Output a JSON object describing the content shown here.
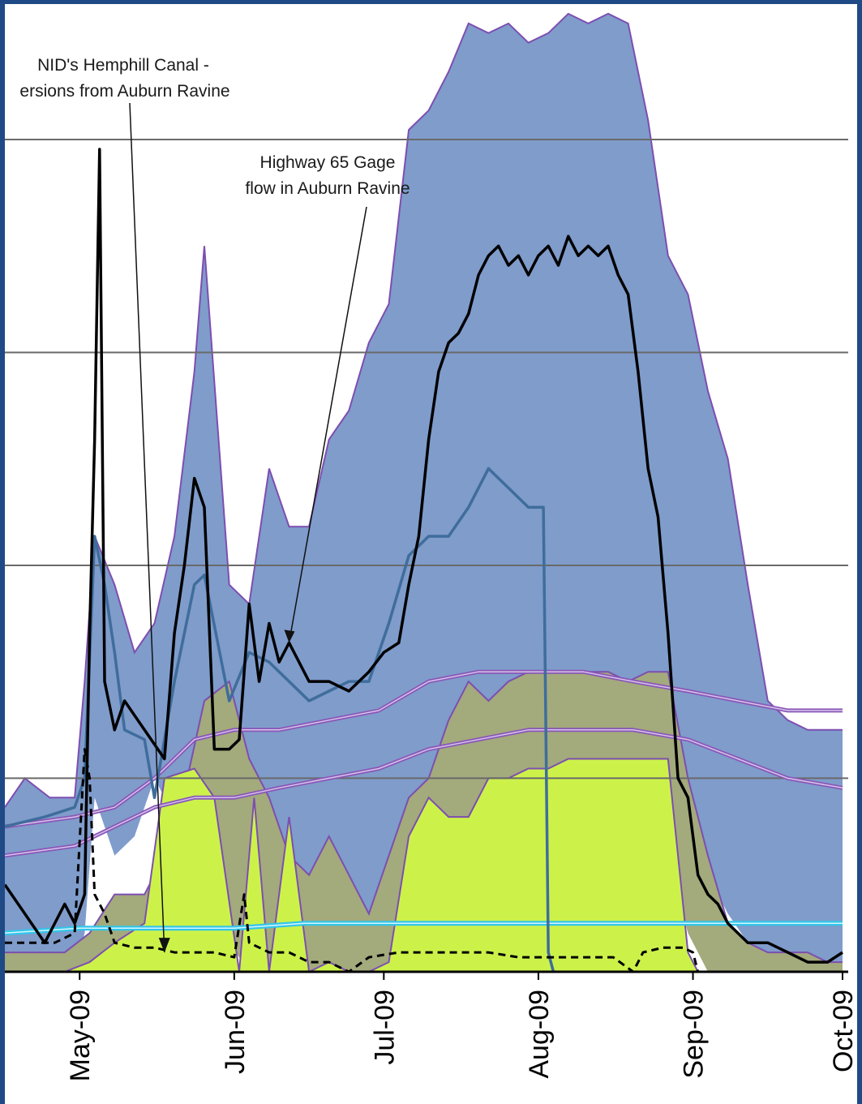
{
  "colors": {
    "border": "#1f4a86",
    "band_outer": "#7f9ccb",
    "band_outer_edge": "#7d4eb0",
    "band_mid": "#a3aa7c",
    "band_inner": "#ccf24a",
    "line_main": "#000000",
    "line_gage": "#3f6d9c",
    "line_purple": "#8a57b8",
    "line_cyan": "#33c6e8",
    "gridline": "#6a6a6a"
  },
  "chart_data": {
    "type": "area",
    "title": "",
    "xlabel": "",
    "ylabel": "",
    "x_range": [
      "2009-04-16",
      "2009-10-01"
    ],
    "y_range": [
      0,
      100
    ],
    "grid": "horizontal",
    "x_ticks": [
      "May-09",
      "Jun-09",
      "Jul-09",
      "Aug-09",
      "Sep-09",
      "Oct-09"
    ],
    "x_tick_dates": [
      "2009-05-01",
      "2009-06-01",
      "2009-07-01",
      "2009-08-01",
      "2009-09-01",
      "2009-10-01"
    ],
    "y_gridlines": [
      20,
      42,
      64,
      86
    ],
    "annotations": [
      {
        "lines": [
          "NID's Hemphill Canal -",
          "ersions from Auburn Ravine"
        ],
        "arrow_to": [
          "2009-05-18",
          2
        ]
      },
      {
        "lines": [
          "Highway 65 Gage",
          "flow in Auburn Ravine"
        ],
        "arrow_to": [
          "2009-06-12",
          34
        ]
      }
    ],
    "bands": [
      {
        "name": "outer-range",
        "x": [
          "2009-04-16",
          "2009-04-20",
          "2009-04-25",
          "2009-04-30",
          "2009-05-02",
          "2009-05-04",
          "2009-05-08",
          "2009-05-12",
          "2009-05-16",
          "2009-05-20",
          "2009-05-24",
          "2009-05-26",
          "2009-05-31",
          "2009-06-04",
          "2009-06-08",
          "2009-06-12",
          "2009-06-16",
          "2009-06-20",
          "2009-06-24",
          "2009-06-28",
          "2009-07-02",
          "2009-07-06",
          "2009-07-10",
          "2009-07-14",
          "2009-07-18",
          "2009-07-22",
          "2009-07-26",
          "2009-07-30",
          "2009-08-03",
          "2009-08-07",
          "2009-08-11",
          "2009-08-15",
          "2009-08-19",
          "2009-08-23",
          "2009-08-27",
          "2009-08-31",
          "2009-09-04",
          "2009-09-08",
          "2009-09-12",
          "2009-09-16",
          "2009-09-20",
          "2009-09-24",
          "2009-09-28",
          "2009-10-01"
        ],
        "upper": [
          17,
          20,
          18,
          18,
          30,
          45,
          40,
          33,
          36,
          45,
          62,
          75,
          40,
          38,
          52,
          46,
          46,
          55,
          58,
          65,
          69,
          87,
          89,
          93,
          98,
          97,
          98,
          96,
          97,
          99,
          98,
          99,
          98,
          88,
          74,
          70,
          60,
          53,
          40,
          28,
          26,
          25,
          25,
          25
        ],
        "lower": [
          0,
          0,
          0,
          0,
          4,
          18,
          12,
          14,
          20,
          16,
          14,
          12,
          2,
          2,
          3,
          4,
          3,
          2,
          3,
          4,
          6,
          6,
          8,
          12,
          16,
          18,
          20,
          22,
          24,
          24,
          24,
          24,
          24,
          22,
          18,
          14,
          10,
          6,
          3,
          2,
          2,
          2,
          1,
          1
        ]
      },
      {
        "name": "mid-range",
        "x": [
          "2009-04-16",
          "2009-04-28",
          "2009-05-03",
          "2009-05-08",
          "2009-05-14",
          "2009-05-20",
          "2009-05-26",
          "2009-05-31",
          "2009-06-04",
          "2009-06-08",
          "2009-06-12",
          "2009-06-16",
          "2009-06-20",
          "2009-06-24",
          "2009-06-28",
          "2009-07-02",
          "2009-07-06",
          "2009-07-10",
          "2009-07-14",
          "2009-07-18",
          "2009-07-22",
          "2009-07-26",
          "2009-07-30",
          "2009-08-03",
          "2009-08-07",
          "2009-08-11",
          "2009-08-15",
          "2009-08-19",
          "2009-08-23",
          "2009-08-27",
          "2009-08-31",
          "2009-09-04",
          "2009-09-08",
          "2009-09-12",
          "2009-09-16",
          "2009-09-20",
          "2009-09-24",
          "2009-09-28",
          "2009-10-01"
        ],
        "upper": [
          2,
          2,
          4,
          8,
          8,
          14,
          28,
          30,
          22,
          18,
          12,
          10,
          14,
          10,
          6,
          12,
          18,
          20,
          26,
          30,
          28,
          30,
          31,
          31,
          31,
          31,
          31,
          30,
          31,
          31,
          20,
          12,
          5,
          3,
          2,
          2,
          2,
          1,
          1
        ],
        "lower": [
          0,
          0,
          0,
          0,
          1,
          2,
          4,
          3,
          0,
          0,
          0,
          0,
          0,
          0,
          0,
          0,
          2,
          6,
          8,
          10,
          12,
          12,
          12,
          12,
          12,
          12,
          12,
          12,
          12,
          12,
          4,
          0,
          0,
          0,
          0,
          0,
          0,
          0,
          0
        ]
      },
      {
        "name": "inner-range",
        "x": [
          "2009-04-16",
          "2009-04-28",
          "2009-05-03",
          "2009-05-08",
          "2009-05-14",
          "2009-05-18",
          "2009-05-24",
          "2009-05-28",
          "2009-06-02",
          "2009-06-05",
          "2009-06-08",
          "2009-06-12",
          "2009-06-16",
          "2009-06-20",
          "2009-06-24",
          "2009-06-28",
          "2009-07-02",
          "2009-07-06",
          "2009-07-10",
          "2009-07-14",
          "2009-07-18",
          "2009-07-22",
          "2009-07-26",
          "2009-07-30",
          "2009-08-03",
          "2009-08-07",
          "2009-08-11",
          "2009-08-15",
          "2009-08-19",
          "2009-08-23",
          "2009-08-27",
          "2009-08-31",
          "2009-09-02",
          "2009-09-08",
          "2009-10-01"
        ],
        "upper": [
          0,
          0,
          1,
          3,
          5,
          20,
          21,
          18,
          0,
          18,
          0,
          16,
          0,
          1,
          0,
          0,
          1,
          14,
          18,
          16,
          16,
          20,
          20,
          21,
          21,
          22,
          22,
          22,
          22,
          22,
          22,
          2,
          0,
          0,
          0
        ],
        "lower": [
          0,
          0,
          0,
          0,
          0,
          0,
          0,
          0,
          0,
          0,
          0,
          0,
          0,
          0,
          0,
          0,
          0,
          0,
          0,
          0,
          0,
          0,
          0,
          0,
          0,
          0,
          0,
          0,
          0,
          0,
          0,
          0,
          0,
          0,
          0
        ]
      }
    ],
    "series": [
      {
        "name": "Highway 65 Gage flow in Auburn Ravine",
        "style": "black-solid",
        "x": [
          "2009-04-16",
          "2009-04-20",
          "2009-04-24",
          "2009-04-28",
          "2009-04-30",
          "2009-05-02",
          "2009-05-03",
          "2009-05-04",
          "2009-05-05",
          "2009-05-06",
          "2009-05-08",
          "2009-05-10",
          "2009-05-14",
          "2009-05-18",
          "2009-05-20",
          "2009-05-22",
          "2009-05-24",
          "2009-05-26",
          "2009-05-28",
          "2009-05-31",
          "2009-06-02",
          "2009-06-04",
          "2009-06-06",
          "2009-06-08",
          "2009-06-10",
          "2009-06-12",
          "2009-06-16",
          "2009-06-20",
          "2009-06-24",
          "2009-06-26",
          "2009-06-28",
          "2009-07-01",
          "2009-07-04",
          "2009-07-06",
          "2009-07-08",
          "2009-07-10",
          "2009-07-12",
          "2009-07-14",
          "2009-07-16",
          "2009-07-18",
          "2009-07-20",
          "2009-07-22",
          "2009-07-24",
          "2009-07-26",
          "2009-07-28",
          "2009-07-30",
          "2009-08-01",
          "2009-08-03",
          "2009-08-05",
          "2009-08-07",
          "2009-08-09",
          "2009-08-11",
          "2009-08-13",
          "2009-08-15",
          "2009-08-17",
          "2009-08-19",
          "2009-08-21",
          "2009-08-23",
          "2009-08-25",
          "2009-08-27",
          "2009-08-29",
          "2009-08-31",
          "2009-09-02",
          "2009-09-04",
          "2009-09-06",
          "2009-09-08",
          "2009-09-10",
          "2009-09-12",
          "2009-09-16",
          "2009-09-20",
          "2009-09-24",
          "2009-09-28",
          "2009-10-01"
        ],
        "values": [
          9,
          6,
          3,
          7,
          5,
          8,
          35,
          55,
          85,
          30,
          25,
          28,
          25,
          22,
          35,
          42,
          51,
          48,
          23,
          23,
          24,
          38,
          30,
          36,
          32,
          34,
          30,
          30,
          29,
          30,
          31,
          33,
          34,
          40,
          45,
          55,
          62,
          65,
          66,
          68,
          72,
          74,
          75,
          73,
          74,
          72,
          74,
          75,
          73,
          76,
          74,
          75,
          74,
          75,
          72,
          70,
          62,
          52,
          47,
          35,
          20,
          18,
          10,
          8,
          7,
          5,
          4,
          3,
          3,
          2,
          1,
          1,
          2
        ]
      },
      {
        "name": "gage-blue",
        "style": "steelblue-solid",
        "x": [
          "2009-04-16",
          "2009-04-24",
          "2009-04-30",
          "2009-05-02",
          "2009-05-04",
          "2009-05-06",
          "2009-05-08",
          "2009-05-10",
          "2009-05-14",
          "2009-05-16",
          "2009-05-20",
          "2009-05-24",
          "2009-05-26",
          "2009-05-31",
          "2009-06-04",
          "2009-06-08",
          "2009-06-12",
          "2009-06-16",
          "2009-06-20",
          "2009-06-24",
          "2009-06-28",
          "2009-07-02",
          "2009-07-06",
          "2009-07-10",
          "2009-07-14",
          "2009-07-18",
          "2009-07-22",
          "2009-07-26",
          "2009-07-30",
          "2009-08-02",
          "2009-08-03",
          "2009-08-04"
        ],
        "values": [
          15,
          16,
          17,
          20,
          45,
          40,
          33,
          25,
          24,
          18,
          30,
          40,
          41,
          28,
          33,
          32,
          30,
          28,
          29,
          30,
          30,
          36,
          43,
          45,
          45,
          48,
          52,
          50,
          48,
          48,
          2,
          0
        ]
      },
      {
        "name": "purple-trend",
        "style": "purple-double",
        "x": [
          "2009-04-16",
          "2009-04-30",
          "2009-05-08",
          "2009-05-16",
          "2009-05-24",
          "2009-06-01",
          "2009-06-10",
          "2009-06-20",
          "2009-06-30",
          "2009-07-10",
          "2009-07-20",
          "2009-07-30",
          "2009-08-10",
          "2009-08-20",
          "2009-08-31",
          "2009-09-10",
          "2009-09-20",
          "2009-10-01"
        ],
        "values": [
          15,
          16,
          17,
          20,
          24,
          25,
          25,
          26,
          27,
          30,
          31,
          31,
          31,
          30,
          29,
          28,
          27,
          27
        ]
      },
      {
        "name": "purple-lower",
        "style": "purple-double",
        "x": [
          "2009-04-16",
          "2009-04-30",
          "2009-05-08",
          "2009-05-16",
          "2009-05-24",
          "2009-06-01",
          "2009-06-10",
          "2009-06-20",
          "2009-06-30",
          "2009-07-10",
          "2009-07-20",
          "2009-07-30",
          "2009-08-10",
          "2009-08-20",
          "2009-08-31",
          "2009-09-10",
          "2009-09-20",
          "2009-10-01"
        ],
        "values": [
          12,
          13,
          15,
          17,
          18,
          18,
          19,
          20,
          21,
          23,
          24,
          25,
          25,
          25,
          24,
          22,
          20,
          19
        ]
      },
      {
        "name": "cyan-baseline",
        "style": "cyan-double",
        "x": [
          "2009-04-16",
          "2009-05-01",
          "2009-05-15",
          "2009-06-01",
          "2009-06-15",
          "2009-07-01",
          "2009-07-15",
          "2009-08-01",
          "2009-08-15",
          "2009-09-01",
          "2009-09-15",
          "2009-10-01"
        ],
        "values": [
          4,
          4.5,
          4.5,
          4.5,
          5,
          5,
          5,
          5,
          5,
          5,
          5,
          5
        ]
      },
      {
        "name": "NID's Hemphill Canal diversions from Auburn Ravine",
        "style": "black-dashed",
        "x": [
          "2009-04-16",
          "2009-04-26",
          "2009-04-30",
          "2009-05-02",
          "2009-05-03",
          "2009-05-04",
          "2009-05-06",
          "2009-05-08",
          "2009-05-12",
          "2009-05-16",
          "2009-05-20",
          "2009-05-24",
          "2009-05-28",
          "2009-06-01",
          "2009-06-03",
          "2009-06-04",
          "2009-06-08",
          "2009-06-12",
          "2009-06-16",
          "2009-06-20",
          "2009-06-24",
          "2009-06-28",
          "2009-07-04",
          "2009-07-10",
          "2009-07-16",
          "2009-07-22",
          "2009-07-28",
          "2009-08-04",
          "2009-08-10",
          "2009-08-16",
          "2009-08-20",
          "2009-08-22",
          "2009-08-26",
          "2009-08-30",
          "2009-09-01",
          "2009-09-02",
          "2009-10-01"
        ],
        "values": [
          3,
          3,
          4,
          23,
          20,
          8,
          6,
          3,
          2.5,
          2.5,
          2,
          2,
          2,
          1.5,
          8,
          3,
          2,
          2,
          1,
          1,
          0,
          1.5,
          2,
          2,
          2,
          2,
          1.5,
          1.5,
          1.5,
          1.5,
          0,
          2,
          2.5,
          2.5,
          2,
          0,
          0
        ]
      }
    ]
  }
}
